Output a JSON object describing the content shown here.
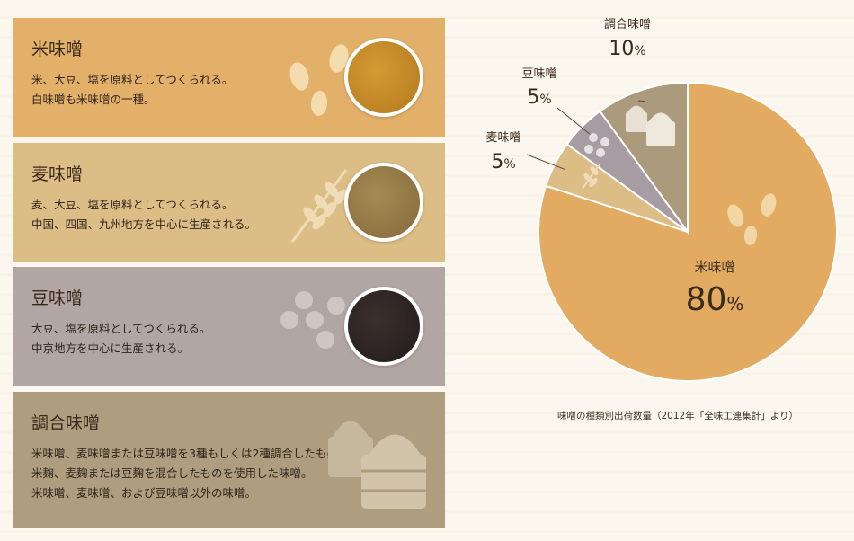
{
  "cards": [
    {
      "title": "米味噌",
      "lines": [
        "米、大豆、塩を原料としてつくられる。",
        "白味噌も米味噌の一種。"
      ],
      "color": "#e3b06a"
    },
    {
      "title": "麦味噌",
      "lines": [
        "麦、大豆、塩を原料としてつくられる。",
        "中国、四国、九州地方を中心に生産される。"
      ],
      "color": "#dcbd85"
    },
    {
      "title": "豆味噌",
      "lines": [
        "大豆、塩を原料としてつくられる。",
        "中京地方を中心に生産される。"
      ],
      "color": "#b2a6a4"
    },
    {
      "title": "調合味噌",
      "lines": [
        "米味噌、麦味噌または豆味噌を3種もしくは2種調合したもの。",
        "米麹、麦麹または豆麹を混合したものを使用した味噌。",
        "米味噌、麦味噌、および豆味噌以外の味噌。"
      ],
      "color": "#ae9d7e"
    }
  ],
  "icons": {
    "card1": [
      "rice-grain-icon",
      "kome-miso-swatch"
    ],
    "card2": [
      "wheat-icon",
      "mugi-miso-swatch"
    ],
    "card3": [
      "soybean-icon",
      "mame-miso-swatch"
    ],
    "card4": [
      "miso-barrel-icon"
    ]
  },
  "chart_data": {
    "type": "pie",
    "slices": [
      {
        "label": "米味噌",
        "value": 80,
        "display": "80",
        "color": "#e3ab62"
      },
      {
        "label": "麦味噌",
        "value": 5,
        "display": "5",
        "color": "#dcbd85"
      },
      {
        "label": "豆味噌",
        "value": 5,
        "display": "5",
        "color": "#a79ca1"
      },
      {
        "label": "調合味噌",
        "value": 10,
        "display": "10",
        "color": "#ab9b7c"
      }
    ],
    "unit": "%",
    "start_angle_deg": 0,
    "direction": "clockwise from 12 o'clock, order: 米味噌, 麦味噌, 豆味噌, 調合味噌"
  },
  "source_note": "味噌の種類別出荷数量（2012年「全味工連集計」より）"
}
